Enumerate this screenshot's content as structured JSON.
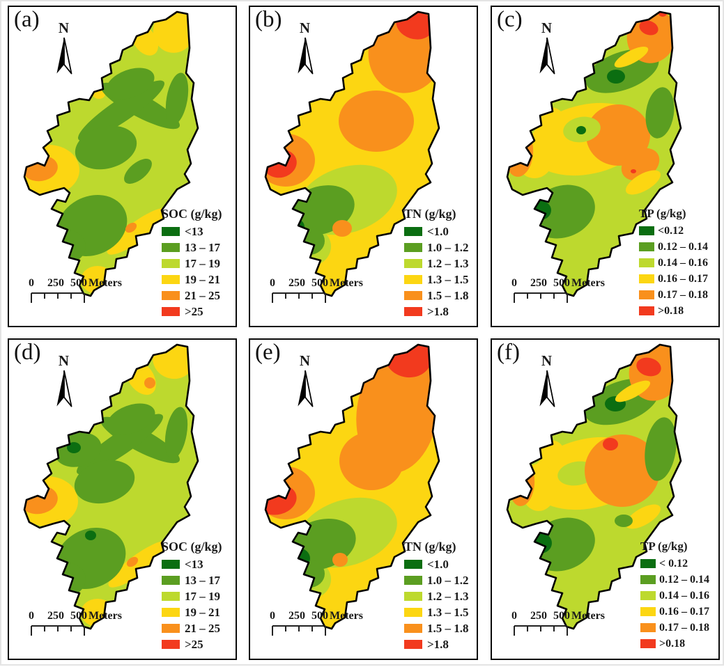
{
  "palette": {
    "class_colors": [
      "#0b6e11",
      "#5b9e21",
      "#bdd92e",
      "#fcd612",
      "#f9901c",
      "#f23a1e"
    ],
    "outline_color": "#000000",
    "panel_border_color": "#0a0a0a",
    "background": "#ffffff"
  },
  "north_arrow": {
    "label": "N"
  },
  "scalebar": {
    "tick_labels": [
      "0",
      "250",
      "500"
    ],
    "unit_label": "Meters"
  },
  "panels": [
    {
      "id": "a",
      "letter": "(a)",
      "legend_title": "SOC (g/kg)",
      "legend_items": [
        {
          "label": "<13",
          "color": "#0b6e11"
        },
        {
          "label": "13 – 17",
          "color": "#5b9e21"
        },
        {
          "label": "17 – 19",
          "color": "#bdd92e"
        },
        {
          "label": "19 – 21",
          "color": "#fcd612"
        },
        {
          "label": "21 – 25",
          "color": "#f9901c"
        },
        {
          "label": ">25",
          "color": "#f23a1e"
        }
      ]
    },
    {
      "id": "b",
      "letter": "(b)",
      "legend_title": "TN (g/kg)",
      "legend_items": [
        {
          "label": "<1.0",
          "color": "#0b6e11"
        },
        {
          "label": "1.0 – 1.2",
          "color": "#5b9e21"
        },
        {
          "label": "1.2 – 1.3",
          "color": "#bdd92e"
        },
        {
          "label": "1.3 – 1.5",
          "color": "#fcd612"
        },
        {
          "label": "1.5 – 1.8",
          "color": "#f9901c"
        },
        {
          "label": ">1.8",
          "color": "#f23a1e"
        }
      ]
    },
    {
      "id": "c",
      "letter": "(c)",
      "legend_title": "TP (g/kg)",
      "legend_items": [
        {
          "label": "<0.12",
          "color": "#0b6e11"
        },
        {
          "label": "0.12 – 0.14",
          "color": "#5b9e21"
        },
        {
          "label": "0.14 – 0.16",
          "color": "#bdd92e"
        },
        {
          "label": "0.16 – 0.17",
          "color": "#fcd612"
        },
        {
          "label": "0.17 – 0.18",
          "color": "#f9901c"
        },
        {
          "label": ">0.18",
          "color": "#f23a1e"
        }
      ]
    },
    {
      "id": "d",
      "letter": "(d)",
      "legend_title": "SOC (g/kg)",
      "legend_items": [
        {
          "label": "<13",
          "color": "#0b6e11"
        },
        {
          "label": "13 – 17",
          "color": "#5b9e21"
        },
        {
          "label": "17 – 19",
          "color": "#bdd92e"
        },
        {
          "label": "19 – 21",
          "color": "#fcd612"
        },
        {
          "label": "21 – 25",
          "color": "#f9901c"
        },
        {
          "label": ">25",
          "color": "#f23a1e"
        }
      ]
    },
    {
      "id": "e",
      "letter": "(e)",
      "legend_title": "TN (g/kg)",
      "legend_items": [
        {
          "label": "<1.0",
          "color": "#0b6e11"
        },
        {
          "label": "1.0 – 1.2",
          "color": "#5b9e21"
        },
        {
          "label": "1.2 – 1.3",
          "color": "#bdd92e"
        },
        {
          "label": "1.3 – 1.5",
          "color": "#fcd612"
        },
        {
          "label": "1.5 – 1.8",
          "color": "#f9901c"
        },
        {
          "label": ">1.8",
          "color": "#f23a1e"
        }
      ]
    },
    {
      "id": "f",
      "letter": "(f)",
      "legend_title": "TP (g/kg)",
      "legend_items": [
        {
          "label": "< 0.12",
          "color": "#0b6e11"
        },
        {
          "label": "0.12 – 0.14",
          "color": "#5b9e21"
        },
        {
          "label": "0.14 – 0.16",
          "color": "#bdd92e"
        },
        {
          "label": "0.16 – 0.17",
          "color": "#fcd612"
        },
        {
          "label": "0.17 – 0.18",
          "color": "#f9901c"
        },
        {
          "label": ">0.18",
          "color": "#f23a1e"
        }
      ]
    }
  ]
}
